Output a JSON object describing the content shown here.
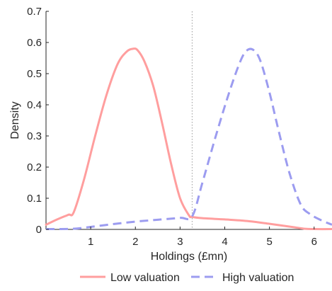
{
  "chart_data": {
    "type": "line",
    "title": "",
    "xlabel": "Holdings (£mn)",
    "ylabel": "Density",
    "xlim": [
      0,
      6.4
    ],
    "ylim": [
      0,
      0.7
    ],
    "x_ticks": [
      1,
      2,
      3,
      4,
      5,
      6
    ],
    "y_ticks": [
      0,
      0.1,
      0.2,
      0.3,
      0.4,
      0.5,
      0.6,
      0.7
    ],
    "grid": false,
    "legend_position": "bottom",
    "reference_line_x": 3.27,
    "series": [
      {
        "name": "Low valuation",
        "color": "#ff9e9e",
        "dash": "solid",
        "x": [
          0,
          0.25,
          0.5,
          0.62,
          0.85,
          1.1,
          1.35,
          1.6,
          1.8,
          1.95,
          2.05,
          2.2,
          2.4,
          2.6,
          2.8,
          3.0,
          3.2,
          3.27,
          3.5,
          4.0,
          4.5,
          5.0,
          5.5,
          5.8,
          6.0,
          6.4
        ],
        "y": [
          0.015,
          0.032,
          0.047,
          0.055,
          0.16,
          0.3,
          0.43,
          0.53,
          0.57,
          0.58,
          0.575,
          0.54,
          0.46,
          0.34,
          0.21,
          0.1,
          0.045,
          0.04,
          0.036,
          0.032,
          0.027,
          0.018,
          0.008,
          0.002,
          0.001,
          0.001
        ]
      },
      {
        "name": "High valuation",
        "color": "#9c9cf0",
        "dash": "dashed",
        "x": [
          0,
          0.6,
          1.0,
          1.5,
          2.0,
          2.5,
          3.0,
          3.27,
          3.5,
          3.8,
          4.1,
          4.35,
          4.5,
          4.65,
          4.8,
          5.0,
          5.2,
          5.45,
          5.7,
          5.9,
          6.15,
          6.4
        ],
        "y": [
          0.001,
          0.002,
          0.008,
          0.017,
          0.025,
          0.031,
          0.037,
          0.042,
          0.15,
          0.3,
          0.44,
          0.54,
          0.575,
          0.575,
          0.54,
          0.44,
          0.32,
          0.18,
          0.08,
          0.05,
          0.03,
          0.015
        ]
      }
    ]
  }
}
